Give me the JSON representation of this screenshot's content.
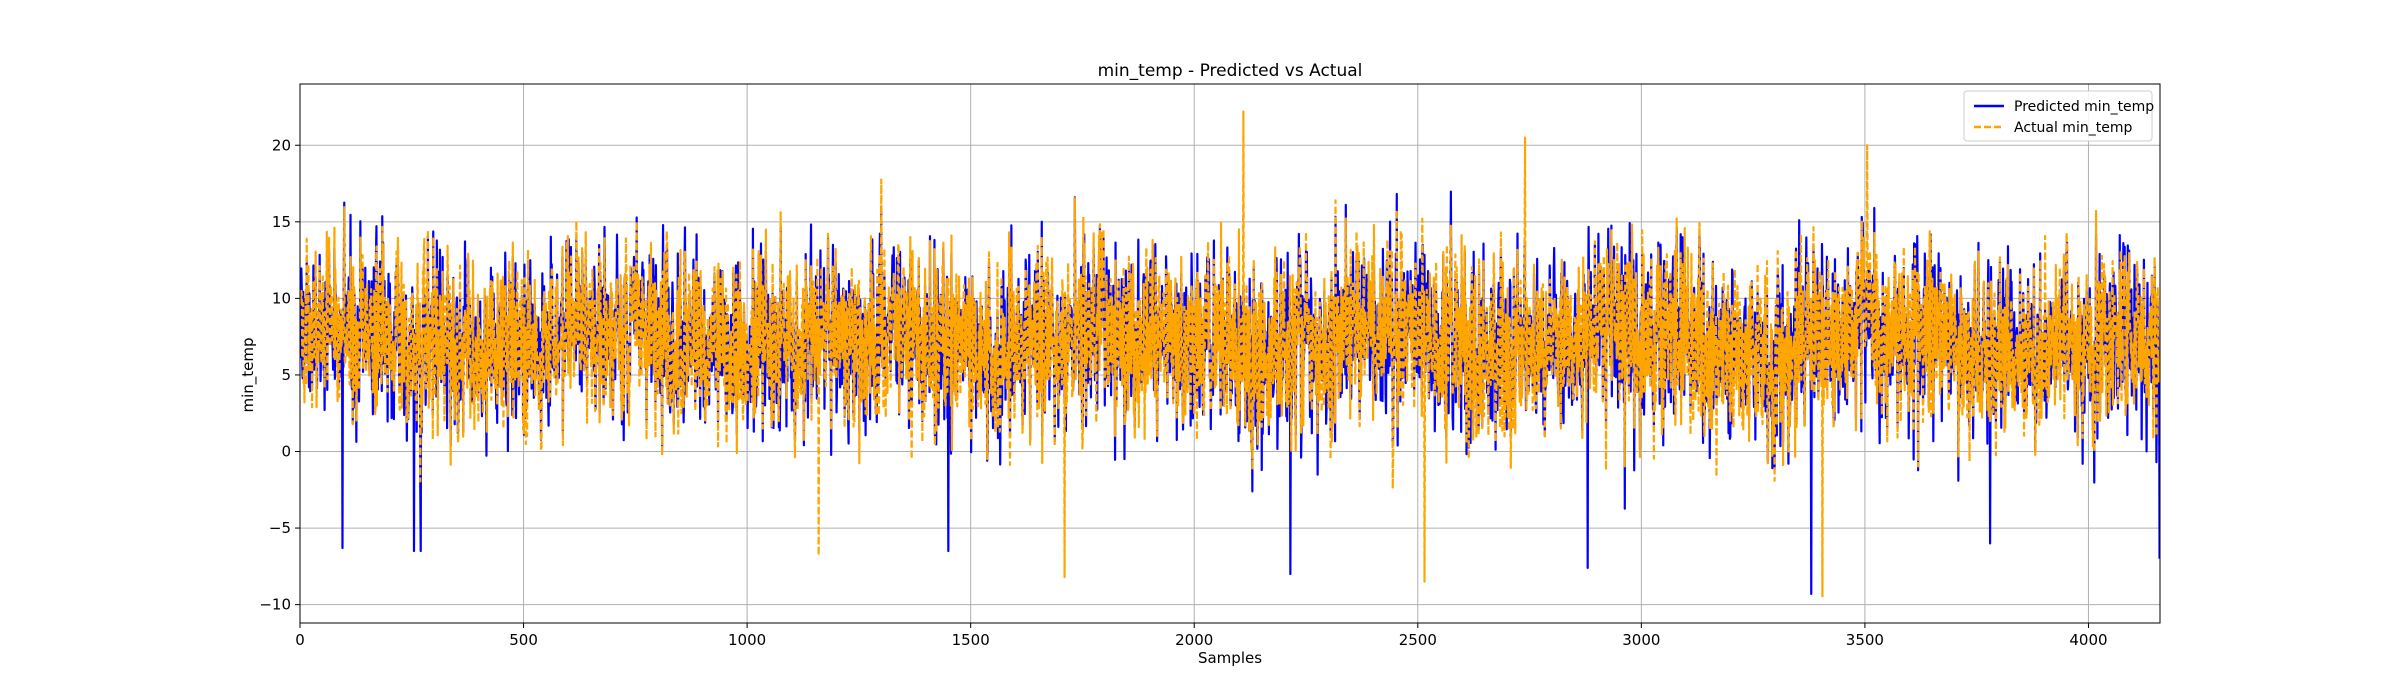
{
  "chart_data": {
    "type": "line",
    "title": "min_temp - Predicted vs Actual",
    "xlabel": "Samples",
    "ylabel": "min_temp",
    "xlim": [
      0,
      4160
    ],
    "ylim": [
      -11.2,
      24
    ],
    "xticks": [
      0,
      500,
      1000,
      1500,
      2000,
      2500,
      3000,
      3500,
      4000
    ],
    "yticks": [
      -10,
      -5,
      0,
      5,
      10,
      15,
      20
    ],
    "grid": true,
    "legend_position": "top-right",
    "n_samples": 4160,
    "series": [
      {
        "name": "Predicted min_temp",
        "color": "#0000ff",
        "style": "solid",
        "summary": {
          "min": -9.3,
          "max": 18.8,
          "typical_range": [
            0,
            15
          ]
        },
        "notable_points": [
          {
            "x": 95,
            "y": -6.3
          },
          {
            "x": 255,
            "y": -6.5
          },
          {
            "x": 270,
            "y": -6.5
          },
          {
            "x": 1450,
            "y": -6.5
          },
          {
            "x": 2215,
            "y": -8.0
          },
          {
            "x": 2880,
            "y": -7.6
          },
          {
            "x": 3380,
            "y": -9.3
          },
          {
            "x": 3780,
            "y": -6.0
          },
          {
            "x": 4225,
            "y": -7.0
          }
        ]
      },
      {
        "name": "Actual min_temp",
        "color": "#ffa500",
        "style": "dashed",
        "summary": {
          "min": -9.5,
          "max": 22.2,
          "typical_range": [
            0,
            15
          ]
        },
        "notable_points": [
          {
            "x": 2110,
            "y": 22.2
          },
          {
            "x": 2740,
            "y": 20.5
          },
          {
            "x": 3505,
            "y": 20.0
          },
          {
            "x": 1160,
            "y": -6.8
          },
          {
            "x": 1710,
            "y": -8.2
          },
          {
            "x": 2515,
            "y": -8.5
          },
          {
            "x": 3405,
            "y": -9.5
          }
        ]
      }
    ]
  }
}
